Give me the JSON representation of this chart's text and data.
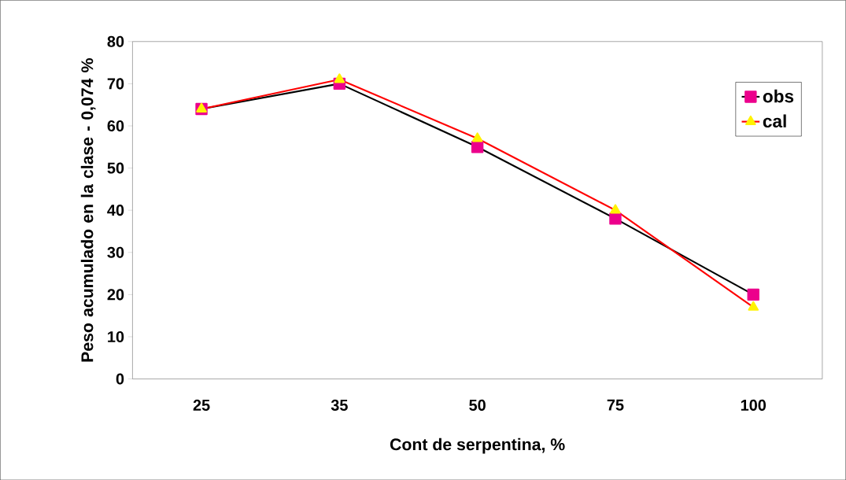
{
  "chart_data": {
    "type": "line",
    "xlabel": "Cont de serpentina, %",
    "ylabel": "Peso acumulado en la clase - 0,074 %",
    "categories": [
      "25",
      "35",
      "50",
      "75",
      "100"
    ],
    "series": [
      {
        "name": "obs",
        "color": "#000000",
        "marker": "square",
        "values": [
          64,
          70,
          55,
          38,
          20
        ]
      },
      {
        "name": "cal",
        "color": "#ff0000",
        "marker": "triangle",
        "values": [
          64,
          71,
          57,
          40,
          17
        ]
      }
    ],
    "ylim": [
      0,
      80
    ],
    "yticks": [
      0,
      10,
      20,
      30,
      40,
      50,
      60,
      70,
      80
    ],
    "legend": "top right",
    "grid": false
  }
}
